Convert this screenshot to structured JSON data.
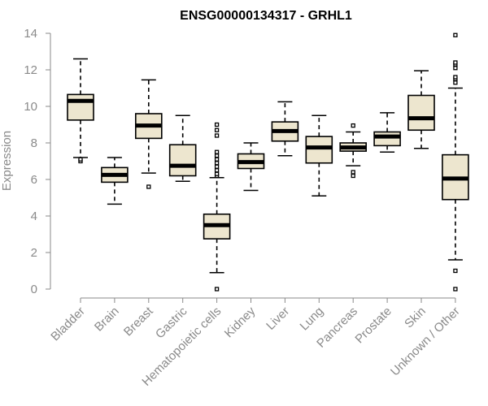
{
  "chart_data": {
    "type": "box",
    "title": "ENSG00000134317 - GRHL1",
    "xlabel": "",
    "ylabel": "Expression",
    "ylim": [
      0,
      14
    ],
    "yticks": [
      0,
      2,
      4,
      6,
      8,
      10,
      12,
      14
    ],
    "categories": [
      "Bladder",
      "Brain",
      "Breast",
      "Gastric",
      "Hematopoietic cells",
      "Kidney",
      "Liver",
      "Lung",
      "Pancreas",
      "Prostate",
      "Skin",
      "Unknown / Other"
    ],
    "boxes": [
      {
        "category": "Bladder",
        "whisker_low": 7.2,
        "q1": 9.25,
        "median": 10.3,
        "q3": 10.65,
        "whisker_high": 12.6,
        "outliers": [
          7.0,
          7.1
        ]
      },
      {
        "category": "Brain",
        "whisker_low": 4.65,
        "q1": 5.85,
        "median": 6.25,
        "q3": 6.65,
        "whisker_high": 7.2,
        "outliers": []
      },
      {
        "category": "Breast",
        "whisker_low": 6.35,
        "q1": 8.25,
        "median": 8.95,
        "q3": 9.6,
        "whisker_high": 11.45,
        "outliers": [
          5.6
        ]
      },
      {
        "category": "Gastric",
        "whisker_low": 5.9,
        "q1": 6.2,
        "median": 6.75,
        "q3": 7.9,
        "whisker_high": 9.5,
        "outliers": []
      },
      {
        "category": "Hematopoietic cells",
        "whisker_low": 0.9,
        "q1": 2.75,
        "median": 3.5,
        "q3": 4.1,
        "whisker_high": 6.1,
        "outliers": [
          0.0,
          6.2,
          6.3,
          6.5,
          6.7,
          6.9,
          7.1,
          7.3,
          7.5,
          8.4,
          8.7,
          9.0
        ]
      },
      {
        "category": "Kidney",
        "whisker_low": 5.4,
        "q1": 6.6,
        "median": 6.95,
        "q3": 7.4,
        "whisker_high": 8.0,
        "outliers": []
      },
      {
        "category": "Liver",
        "whisker_low": 7.3,
        "q1": 8.1,
        "median": 8.65,
        "q3": 9.15,
        "whisker_high": 10.25,
        "outliers": []
      },
      {
        "category": "Lung",
        "whisker_low": 5.1,
        "q1": 6.9,
        "median": 7.75,
        "q3": 8.35,
        "whisker_high": 9.5,
        "outliers": []
      },
      {
        "category": "Pancreas",
        "whisker_low": 6.75,
        "q1": 7.55,
        "median": 7.75,
        "q3": 8.0,
        "whisker_high": 8.6,
        "outliers": [
          6.2,
          6.4,
          8.95
        ]
      },
      {
        "category": "Prostate",
        "whisker_low": 7.5,
        "q1": 7.85,
        "median": 8.35,
        "q3": 8.6,
        "whisker_high": 9.65,
        "outliers": []
      },
      {
        "category": "Skin",
        "whisker_low": 7.7,
        "q1": 8.7,
        "median": 9.35,
        "q3": 10.6,
        "whisker_high": 11.95,
        "outliers": []
      },
      {
        "category": "Unknown / Other",
        "whisker_low": 1.6,
        "q1": 4.9,
        "median": 6.05,
        "q3": 7.35,
        "whisker_high": 11.0,
        "outliers": [
          0.0,
          1.0,
          11.3,
          11.5,
          11.6,
          12.1,
          12.3,
          12.4,
          13.9
        ]
      }
    ],
    "colors": {
      "box_fill": "#ede6cf",
      "box_stroke": "#000000",
      "axis": "#8a8a8a"
    },
    "grid": false,
    "legend": "none"
  }
}
